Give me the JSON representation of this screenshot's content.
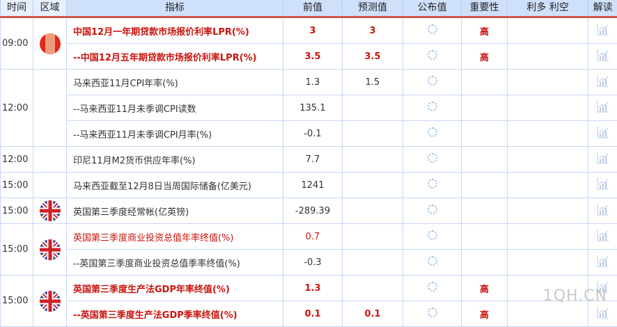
{
  "header": {
    "time": "时间",
    "region": "区域",
    "indicator": "指标",
    "previous": "前值",
    "forecast": "预测值",
    "actual": "公布值",
    "importance": "重要性",
    "impact": "利多 利空",
    "interpret": "解读"
  },
  "colors": {
    "highlight": "#c8140e",
    "header_bg": "#cfe0fb",
    "header_border": "#d0554a"
  },
  "groups": [
    {
      "time": "09:00",
      "flag": "china-flag-icon",
      "rows": [
        {
          "indicator": "中国12月一年期贷款市场报价利率LPR(%)",
          "previous": "3",
          "forecast": "3",
          "importance": "高",
          "style": "red-bold"
        },
        {
          "indicator": "--中国12月五年期贷款市场报价利率LPR(%)",
          "previous": "3.5",
          "forecast": "3.5",
          "importance": "高",
          "style": "red-bold"
        }
      ]
    },
    {
      "time": "12:00",
      "flag": "",
      "rows": [
        {
          "indicator": "马来西亚11月CPI年率(%)",
          "previous": "1.3",
          "forecast": "1.5",
          "importance": "",
          "style": "normal"
        },
        {
          "indicator": "--马来西亚11月未季调CPI读数",
          "previous": "135.1",
          "forecast": "",
          "importance": "",
          "style": "normal"
        },
        {
          "indicator": "--马来西亚11月未季调CPI月率(%)",
          "previous": "-0.1",
          "forecast": "",
          "importance": "",
          "style": "normal"
        }
      ]
    },
    {
      "time": "12:00",
      "flag": "",
      "rows": [
        {
          "indicator": "印尼11月M2货币供应年率(%)",
          "previous": "7.7",
          "forecast": "",
          "importance": "",
          "style": "normal"
        }
      ]
    },
    {
      "time": "15:00",
      "flag": "",
      "rows": [
        {
          "indicator": "马来西亚截至12月8日当周国际储备(亿美元)",
          "previous": "1241",
          "forecast": "",
          "importance": "",
          "style": "normal"
        }
      ]
    },
    {
      "time": "15:00",
      "flag": "uk-flag-icon",
      "rows": [
        {
          "indicator": "英国第三季度经常帐(亿英镑)",
          "previous": "-289.39",
          "forecast": "",
          "importance": "",
          "style": "normal"
        }
      ]
    },
    {
      "time": "15:00",
      "flag": "uk-flag-icon",
      "rows": [
        {
          "indicator": "英国第三季度商业投资总值年率终值(%)",
          "previous": "0.7",
          "forecast": "",
          "importance": "",
          "style": "red"
        },
        {
          "indicator": "--英国第三季度商业投资总值季率终值(%)",
          "previous": "-0.3",
          "forecast": "",
          "importance": "",
          "style": "normal"
        }
      ]
    },
    {
      "time": "15:00",
      "flag": "uk-flag-icon",
      "rows": [
        {
          "indicator": "英国第三季度生产法GDP年率终值(%)",
          "previous": "1.3",
          "forecast": "",
          "importance": "高",
          "style": "red-bold"
        },
        {
          "indicator": "--英国第三季度生产法GDP季率终值(%)",
          "previous": "0.1",
          "forecast": "0.1",
          "importance": "高",
          "style": "red-bold"
        }
      ]
    }
  ],
  "watermark": "1QH.CN"
}
